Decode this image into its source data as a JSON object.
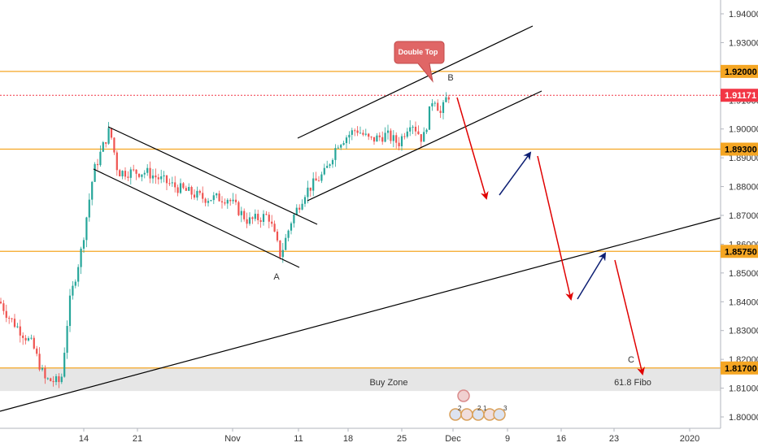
{
  "chart_data": {
    "type": "candlestick",
    "title": "",
    "ylim": [
      1.795,
      1.945
    ],
    "y_ticks": [
      1.8,
      1.81,
      1.82,
      1.83,
      1.84,
      1.85,
      1.86,
      1.87,
      1.88,
      1.89,
      1.9,
      1.91,
      1.92,
      1.93,
      1.94
    ],
    "x_labels": [
      "14",
      "21",
      "Nov",
      "11",
      "18",
      "25",
      "Dec",
      "9",
      "16",
      "23",
      "2020"
    ],
    "last_price": {
      "value": 1.91171,
      "label": "1.91171",
      "color": "#f23645"
    },
    "levels": [
      {
        "value": 1.92,
        "label": "1.92000",
        "color": "#f5a623"
      },
      {
        "value": 1.893,
        "label": "1.89300",
        "color": "#f5a623"
      },
      {
        "value": 1.8575,
        "label": "1.85750",
        "color": "#f5a623"
      },
      {
        "value": 1.817,
        "label": "1.81700",
        "color": "#f5a623"
      }
    ],
    "zone": {
      "from": 1.809,
      "to": 1.817,
      "label": "Buy Zone",
      "color": "#e6e6e6"
    },
    "annotations": {
      "double_top": "Double Top",
      "point_a": "A",
      "point_b": "B",
      "point_c": "C",
      "fibo": "61.8 Fibo"
    },
    "event_badges": [
      "2",
      "2",
      "1",
      "3"
    ],
    "colors": {
      "up": "#26a69a",
      "down": "#ef5350",
      "trend": "#000000",
      "bear_arrow": "#e00000",
      "bull_arrow": "#0d1f73",
      "callout": "#e06666"
    }
  }
}
